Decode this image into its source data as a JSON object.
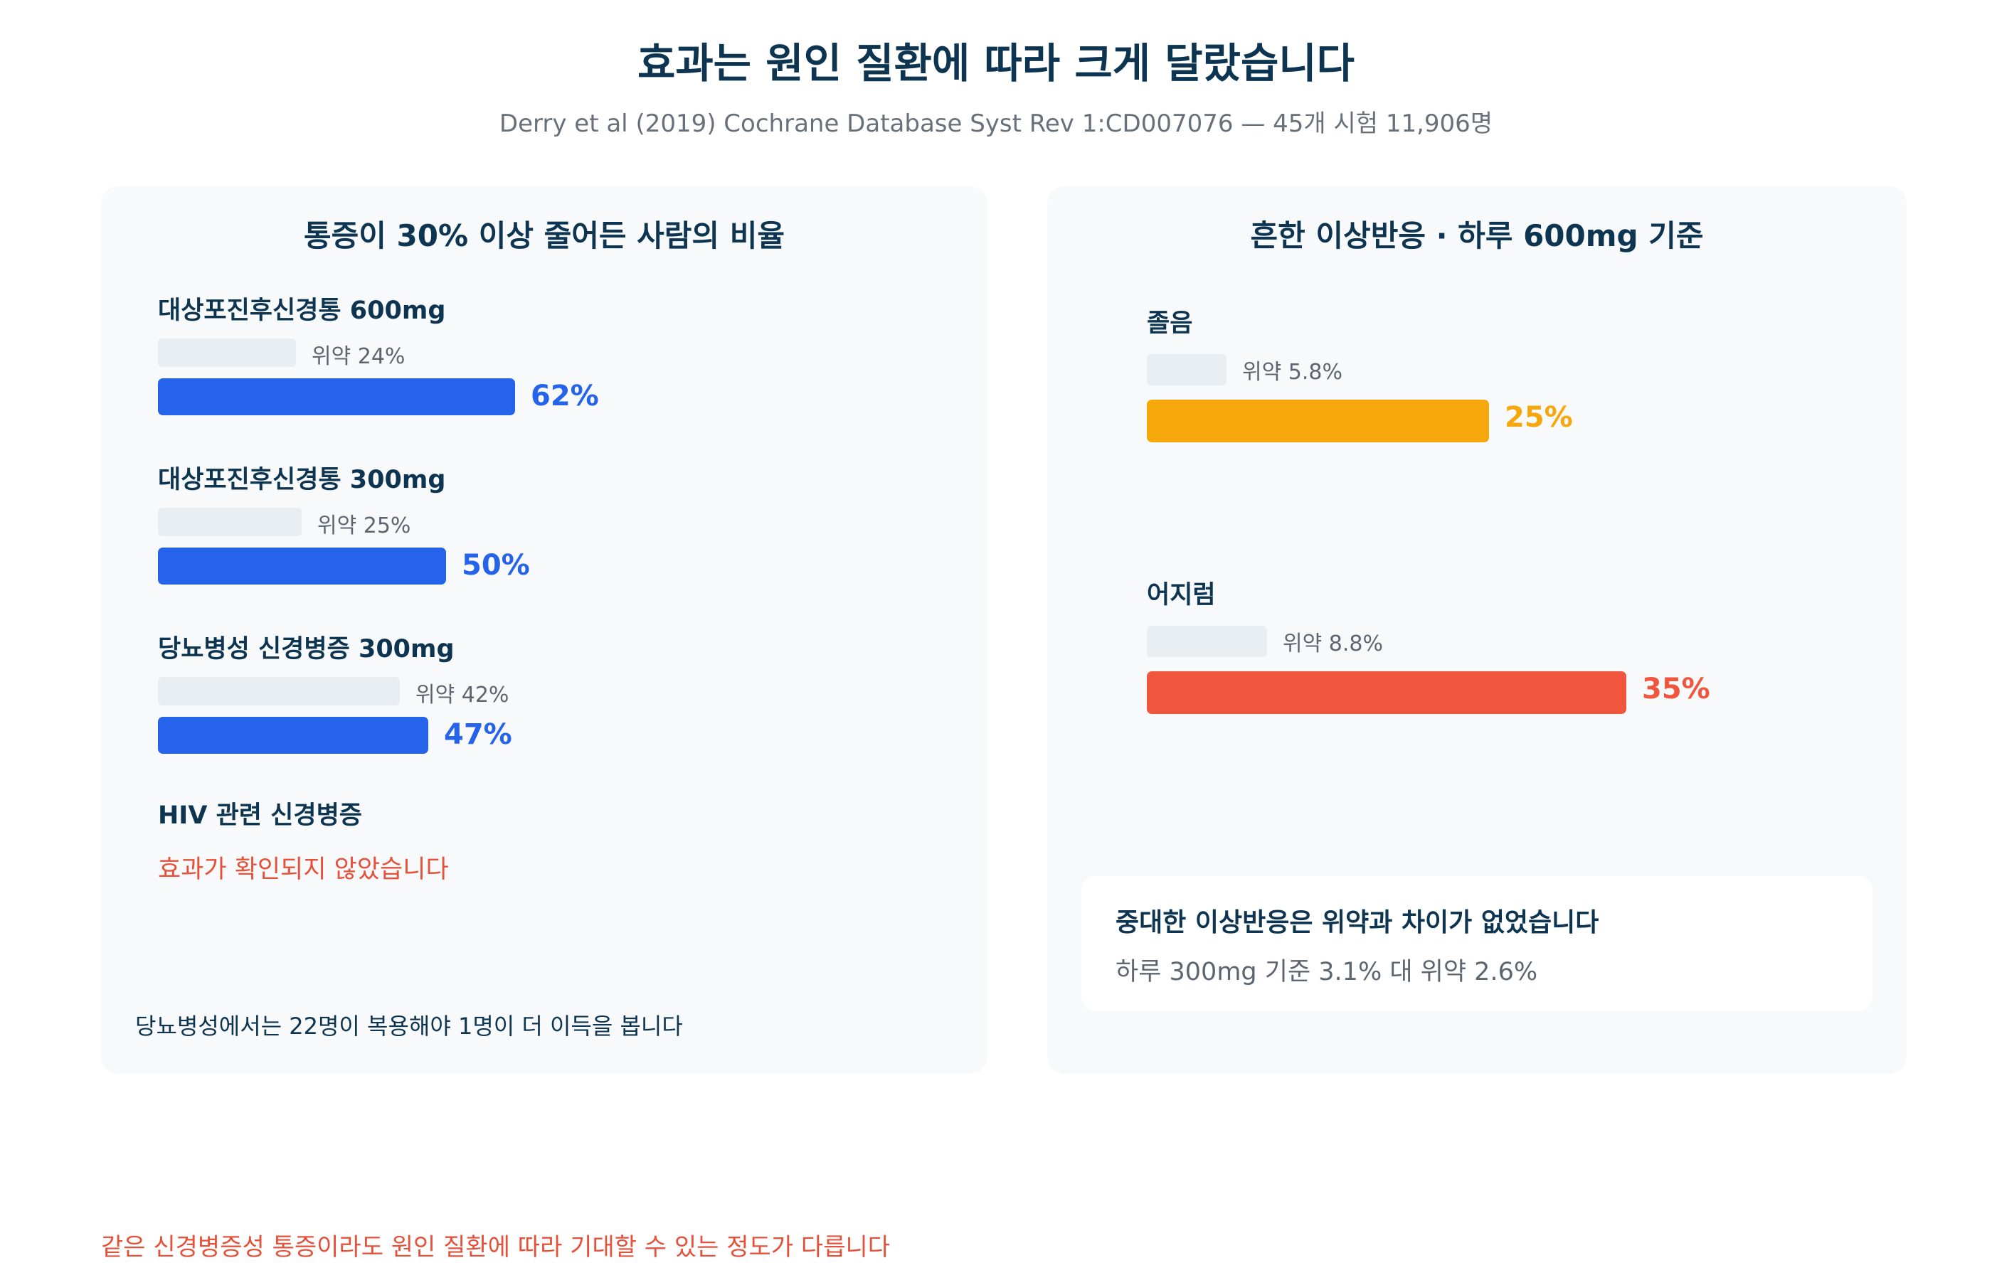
{
  "title": "효과는 원인 질환에 따라 크게 달랐습니다",
  "subtitle": "Derry et al (2019) Cochrane Database Syst Rev 1:CD007076 — 45개 시험 11,906명",
  "colors": {
    "efficacy": "#2563eb",
    "drowsiness": "#f5a70c",
    "dizziness": "#f0563e",
    "placebo": "#e8edf2",
    "note_red": "#e5523b"
  },
  "chart_data": [
    {
      "type": "bar",
      "orientation": "horizontal",
      "title": "통증이 30% 이상 줄어든 사람의 비율",
      "categories": [
        "대상포진후신경통 600mg",
        "대상포진후신경통 300mg",
        "당뇨병성 신경병증 300mg"
      ],
      "series": [
        {
          "name": "위약",
          "values": [
            24,
            25,
            42
          ],
          "labels": [
            "위약 24%",
            "위약 25%",
            "위약 42%"
          ]
        },
        {
          "values": [
            62,
            50,
            47
          ],
          "labels": [
            "62%",
            "50%",
            "47%"
          ]
        }
      ],
      "extra_row": {
        "label": "HIV 관련 신경병증",
        "note": "효과가 확인되지 않았습니다"
      },
      "note": "당뇨병성에서는 22명이 복용해야 1명이 더 이득을 봅니다"
    },
    {
      "type": "bar",
      "orientation": "horizontal",
      "title": "흔한 이상반응 · 하루 600mg 기준",
      "categories": [
        "졸음",
        "어지럼"
      ],
      "series": [
        {
          "name": "위약",
          "values": [
            5.8,
            8.8
          ],
          "labels": [
            "위약 5.8%",
            "위약 8.8%"
          ]
        },
        {
          "values": [
            25,
            35
          ],
          "labels": [
            "25%",
            "35%"
          ]
        }
      ],
      "card": {
        "title": "중대한 이상반응은 위약과 차이가 없었습니다",
        "text": "하루 300mg 기준 3.1% 대 위약 2.6%"
      }
    }
  ],
  "footer": "같은 신경병증성 통증이라도 원인 질환에 따라 기대할 수 있는 정도가 다릅니다"
}
